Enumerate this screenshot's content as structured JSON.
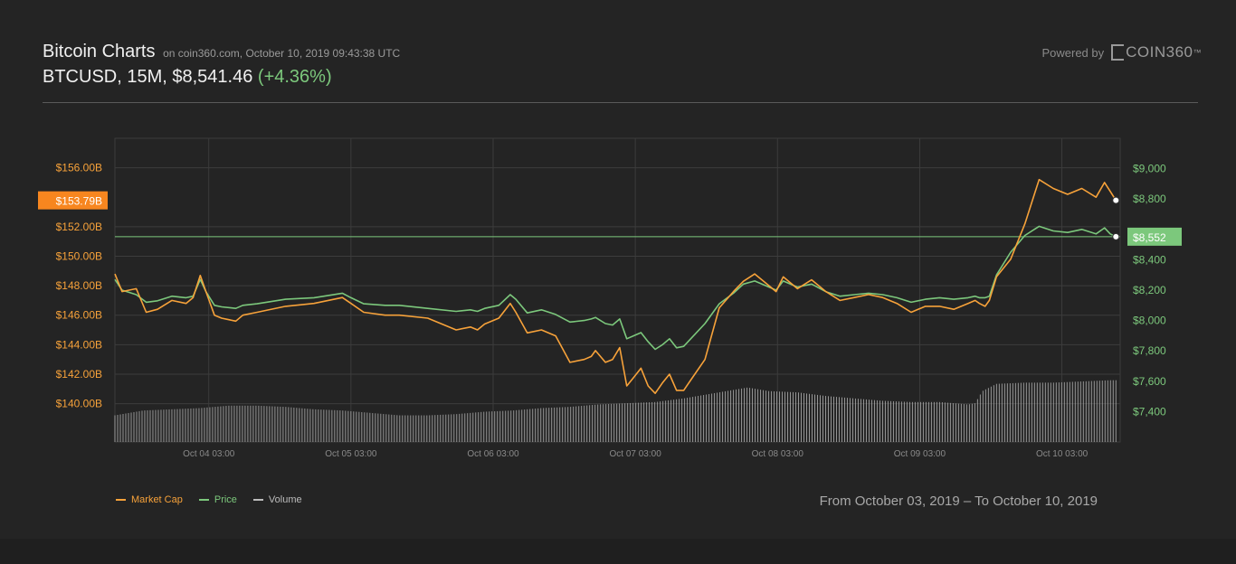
{
  "header": {
    "title": "Bitcoin Charts",
    "meta": "on coin360.com, October 10, 2019 09:43:38 UTC",
    "pair_line": "BTCUSD, 15M, $8,541.46",
    "change": "(+4.36%)"
  },
  "branding": {
    "powered_label": "Powered by",
    "brand_name": "COIN360",
    "brand_tm": "™"
  },
  "footer": {
    "date_range": "From October 03, 2019 – To October 10, 2019"
  },
  "colors": {
    "market_cap": "#f7a23a",
    "price": "#7cc87c",
    "volume": "#bcbcbc",
    "cap_badge": "#f7861f",
    "price_badge": "#7cc87c",
    "grid": "#3c3c3c"
  },
  "chart_data": {
    "type": "line",
    "x_ticks": [
      "Oct 04 03:00",
      "Oct 05 03:00",
      "Oct 06 03:00",
      "Oct 07 03:00",
      "Oct 08 03:00",
      "Oct 09 03:00",
      "Oct 10 03:00"
    ],
    "x_tick_days": [
      0.66,
      1.66,
      2.66,
      3.66,
      4.66,
      5.66,
      6.66
    ],
    "x_range_days": [
      0,
      7.07
    ],
    "left_axis": {
      "ticks": [
        "$156.00B",
        "$152.00B",
        "$150.00B",
        "$148.00B",
        "$146.00B",
        "$144.00B",
        "$142.00B",
        "$140.00B"
      ],
      "tick_values": [
        156,
        152,
        150,
        148,
        146,
        144,
        142,
        140
      ],
      "range": [
        137.4,
        158.0
      ],
      "current_label": "$153.79B",
      "current_value": 153.79
    },
    "right_axis": {
      "ticks": [
        "$9,000",
        "$8,800",
        "$8,400",
        "$8,200",
        "$8,000",
        "$7,800",
        "$7,600",
        "$7,400"
      ],
      "tick_values": [
        9000,
        8800,
        8400,
        8200,
        8000,
        7800,
        7600,
        7400
      ],
      "range": [
        7200,
        9200
      ],
      "current_label": "$8,552",
      "current_value": 8552
    },
    "grid": true,
    "legend_position": "bottom-left",
    "series": [
      {
        "name": "Market Cap",
        "axis": "left",
        "x": [
          0,
          0.05,
          0.15,
          0.22,
          0.3,
          0.4,
          0.5,
          0.55,
          0.6,
          0.64,
          0.7,
          0.75,
          0.85,
          0.9,
          1.0,
          1.2,
          1.4,
          1.6,
          1.66,
          1.75,
          1.9,
          2.0,
          2.2,
          2.4,
          2.5,
          2.55,
          2.6,
          2.7,
          2.78,
          2.82,
          2.9,
          3.0,
          3.1,
          3.2,
          3.3,
          3.35,
          3.38,
          3.45,
          3.5,
          3.55,
          3.6,
          3.65,
          3.7,
          3.75,
          3.8,
          3.85,
          3.9,
          3.95,
          4.0,
          4.05,
          4.15,
          4.25,
          4.35,
          4.42,
          4.5,
          4.6,
          4.65,
          4.7,
          4.8,
          4.9,
          5.0,
          5.1,
          5.2,
          5.3,
          5.4,
          5.5,
          5.6,
          5.7,
          5.8,
          5.9,
          6.0,
          6.05,
          6.08,
          6.12,
          6.15,
          6.2,
          6.3,
          6.4,
          6.5,
          6.6,
          6.7,
          6.8,
          6.9,
          6.96,
          7.0,
          7.04
        ],
        "values": [
          148.8,
          147.6,
          147.8,
          146.2,
          146.4,
          147.0,
          146.8,
          147.2,
          148.7,
          147.6,
          146.0,
          145.8,
          145.6,
          146.0,
          146.2,
          146.6,
          146.8,
          147.2,
          146.8,
          146.2,
          146.0,
          146.0,
          145.8,
          145.0,
          145.2,
          145.0,
          145.4,
          145.8,
          146.8,
          146.2,
          144.8,
          145.0,
          144.6,
          142.8,
          143.0,
          143.2,
          143.6,
          142.8,
          143.0,
          143.8,
          141.2,
          141.8,
          142.4,
          141.2,
          140.7,
          141.4,
          142.0,
          140.9,
          140.9,
          141.6,
          143.0,
          146.5,
          147.6,
          148.3,
          148.8,
          148.0,
          147.6,
          148.6,
          147.8,
          148.4,
          147.6,
          147.0,
          147.2,
          147.4,
          147.2,
          146.8,
          146.2,
          146.6,
          146.6,
          146.4,
          146.8,
          147.0,
          146.8,
          146.6,
          147.0,
          148.6,
          149.8,
          152.2,
          155.2,
          154.6,
          154.2,
          154.6,
          154.0,
          155.0,
          154.4,
          153.79
        ]
      },
      {
        "name": "Price",
        "axis": "right",
        "x": [
          0,
          0.05,
          0.15,
          0.22,
          0.3,
          0.4,
          0.5,
          0.55,
          0.6,
          0.64,
          0.7,
          0.75,
          0.85,
          0.9,
          1.0,
          1.2,
          1.4,
          1.6,
          1.66,
          1.75,
          1.9,
          2.0,
          2.2,
          2.4,
          2.5,
          2.55,
          2.6,
          2.7,
          2.78,
          2.82,
          2.9,
          3.0,
          3.1,
          3.2,
          3.3,
          3.35,
          3.38,
          3.45,
          3.5,
          3.55,
          3.6,
          3.65,
          3.7,
          3.75,
          3.8,
          3.85,
          3.9,
          3.95,
          4.0,
          4.05,
          4.15,
          4.25,
          4.35,
          4.42,
          4.5,
          4.6,
          4.65,
          4.7,
          4.8,
          4.9,
          5.0,
          5.1,
          5.2,
          5.3,
          5.4,
          5.5,
          5.6,
          5.7,
          5.8,
          5.9,
          6.0,
          6.05,
          6.08,
          6.12,
          6.15,
          6.2,
          6.3,
          6.4,
          6.5,
          6.6,
          6.7,
          6.8,
          6.9,
          6.96,
          7.0,
          7.04
        ],
        "values": [
          8270,
          8200,
          8170,
          8120,
          8130,
          8160,
          8150,
          8160,
          8270,
          8190,
          8100,
          8090,
          8080,
          8100,
          8110,
          8140,
          8150,
          8180,
          8150,
          8110,
          8100,
          8100,
          8080,
          8060,
          8070,
          8060,
          8080,
          8100,
          8170,
          8140,
          8050,
          8070,
          8040,
          7990,
          8000,
          8010,
          8020,
          7980,
          7970,
          8010,
          7880,
          7900,
          7920,
          7860,
          7810,
          7840,
          7880,
          7820,
          7830,
          7880,
          7980,
          8110,
          8180,
          8240,
          8260,
          8220,
          8200,
          8260,
          8220,
          8240,
          8190,
          8160,
          8170,
          8180,
          8170,
          8150,
          8120,
          8140,
          8150,
          8140,
          8150,
          8160,
          8150,
          8150,
          8160,
          8300,
          8450,
          8560,
          8620,
          8590,
          8580,
          8600,
          8570,
          8610,
          8570,
          8552
        ]
      },
      {
        "name": "Volume",
        "axis": "volume",
        "x": [
          0,
          0.2,
          0.4,
          0.6,
          0.7,
          0.8,
          1.0,
          1.2,
          1.4,
          1.6,
          1.8,
          2.0,
          2.2,
          2.4,
          2.6,
          2.8,
          3.0,
          3.2,
          3.4,
          3.6,
          3.8,
          4.0,
          4.2,
          4.35,
          4.45,
          4.6,
          4.8,
          5.0,
          5.2,
          5.4,
          5.6,
          5.8,
          6.0,
          6.05,
          6.1,
          6.2,
          6.4,
          6.6,
          6.8,
          7.0,
          7.04
        ],
        "values": [
          0.22,
          0.26,
          0.27,
          0.28,
          0.29,
          0.3,
          0.3,
          0.29,
          0.27,
          0.26,
          0.24,
          0.22,
          0.22,
          0.23,
          0.25,
          0.26,
          0.28,
          0.29,
          0.31,
          0.32,
          0.33,
          0.36,
          0.4,
          0.43,
          0.45,
          0.42,
          0.41,
          0.38,
          0.36,
          0.34,
          0.33,
          0.33,
          0.31,
          0.32,
          0.42,
          0.48,
          0.49,
          0.49,
          0.5,
          0.51,
          0.51
        ]
      }
    ]
  }
}
